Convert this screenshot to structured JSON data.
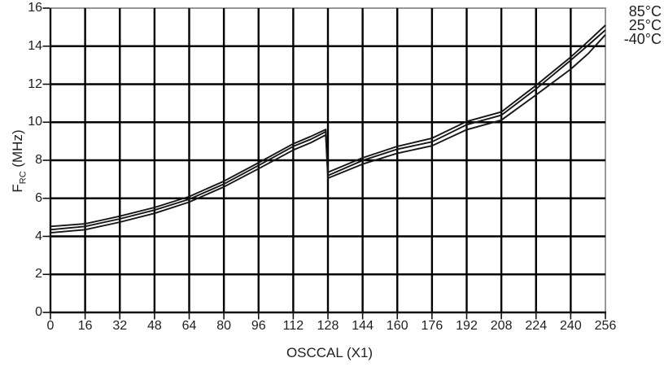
{
  "chart_data": {
    "type": "line",
    "title": "",
    "xlabel": "OSCCAL (X1)",
    "ylabel_main": "F",
    "ylabel_sub": "RC",
    "ylabel_unit": " (MHz)",
    "xlim": [
      0,
      256
    ],
    "ylim": [
      0,
      16
    ],
    "x_tick_step": 16,
    "y_tick_step": 2,
    "x_ticks": [
      0,
      16,
      32,
      48,
      64,
      80,
      96,
      112,
      128,
      144,
      160,
      176,
      192,
      208,
      224,
      240,
      256
    ],
    "y_ticks": [
      0,
      2,
      4,
      6,
      8,
      10,
      12,
      14,
      16
    ],
    "grid": true,
    "legend_position": "top-right-outside",
    "note": "Frequency rises with OSCCAL, drops discontinuously between OSCCAL=127 and OSCCAL=128",
    "x": [
      0,
      16,
      32,
      48,
      64,
      80,
      96,
      112,
      120,
      127,
      128,
      144,
      160,
      176,
      192,
      208,
      224,
      240,
      248,
      256
    ],
    "series": [
      {
        "name": "85°C",
        "values": [
          4.52,
          4.66,
          5.06,
          5.52,
          6.09,
          6.9,
          7.87,
          8.87,
          9.25,
          9.62,
          7.37,
          8.13,
          8.73,
          9.16,
          10.04,
          10.54,
          11.94,
          13.43,
          14.25,
          15.1
        ]
      },
      {
        "name": "25°C",
        "values": [
          4.35,
          4.52,
          4.92,
          5.38,
          5.95,
          6.75,
          7.73,
          8.73,
          9.1,
          9.5,
          7.2,
          7.99,
          8.58,
          8.97,
          9.87,
          10.37,
          11.75,
          13.26,
          14.05,
          14.85
        ]
      },
      {
        "name": "-40°C",
        "values": [
          4.19,
          4.35,
          4.75,
          5.21,
          5.8,
          6.6,
          7.56,
          8.54,
          8.92,
          9.33,
          7.06,
          7.8,
          8.37,
          8.76,
          9.61,
          10.11,
          11.44,
          12.79,
          13.6,
          14.6
        ]
      }
    ],
    "colors": {
      "curve": "#161616",
      "grid": "#000000",
      "axis": "#111111",
      "frame": "#979797",
      "text": "#1f1f1f"
    }
  }
}
